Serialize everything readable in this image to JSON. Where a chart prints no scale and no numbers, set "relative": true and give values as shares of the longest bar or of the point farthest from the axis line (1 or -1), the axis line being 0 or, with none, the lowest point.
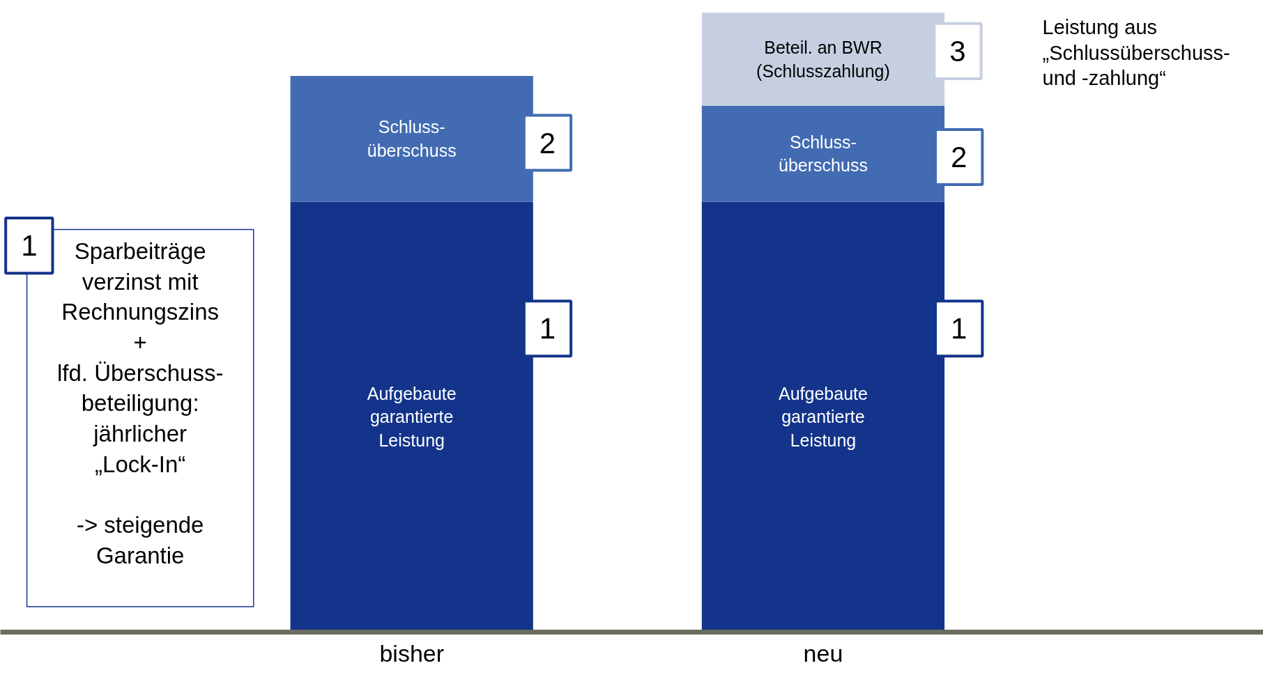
{
  "chart_data": {
    "type": "bar",
    "stacked": true,
    "relative": true,
    "grid": false,
    "categories": [
      "bisher",
      "neu"
    ],
    "series": [
      {
        "name": "Aufgebaute\ngarantierte\nLeistung",
        "color": "#13348a",
        "values": [
          0.695,
          0.695
        ]
      },
      {
        "name": "Schluss-\nüberschuss",
        "color": "#426bb2",
        "values": [
          0.203,
          0.155
        ]
      },
      {
        "name": "Beteil. an BWR\n(Schlusszahlung)",
        "color": "#c6cee1",
        "values": [
          null,
          0.15
        ]
      }
    ],
    "annotations": [
      "1",
      "Sparbeiträge\nverzinst mit\nRechnungszins\n+\nlfd. Überschuss-\nbeteiligung:\njährlicher\n„Lock-In“\n\n-> steigende\nGarantie",
      "2",
      "1",
      "3",
      "2",
      "1",
      "Leistung aus\n„Schlussüberschuss-\nund -zahlung“"
    ]
  }
}
